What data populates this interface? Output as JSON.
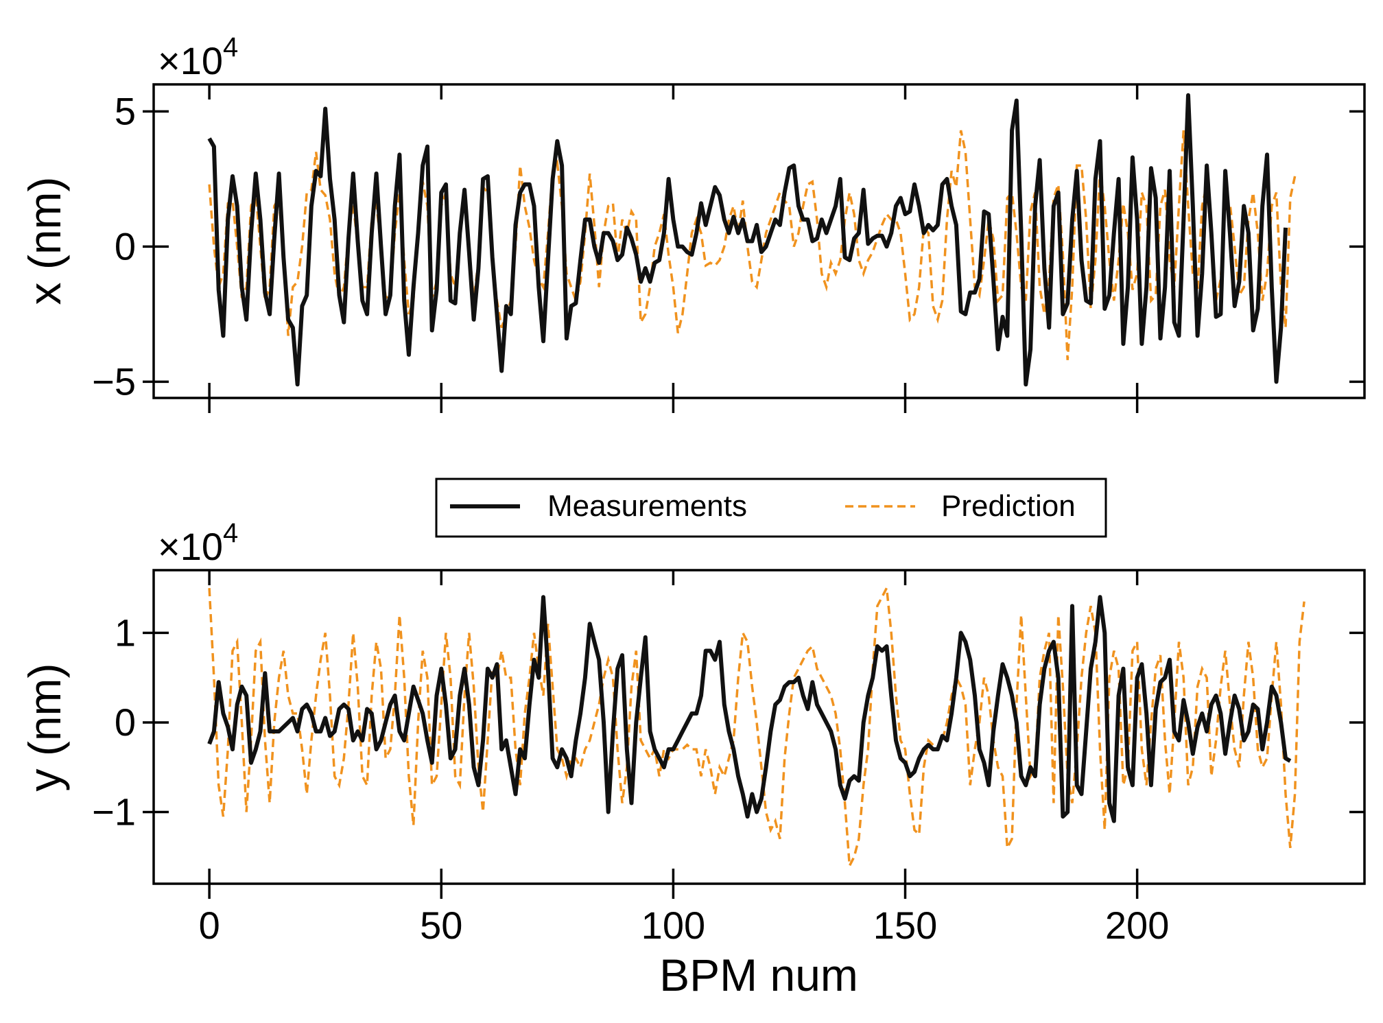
{
  "colors": {
    "measurements": "#111111",
    "prediction": "#F0921E",
    "axes": "#000000",
    "background": "#ffffff"
  },
  "legend": {
    "measurements_label": "Measurements",
    "prediction_label": "Prediction",
    "placement": "upper-center of bottom panel"
  },
  "chart_data": [
    {
      "type": "line",
      "title": "",
      "xlabel": "",
      "ylabel": "x (nm)",
      "multiplier_base": "×10",
      "multiplier_exp": "4",
      "xlim": [
        -12,
        249
      ],
      "ylim": [
        -5.6,
        6.0
      ],
      "yticks": [
        -5,
        0,
        5
      ],
      "ytick_labels": [
        "−5",
        "0",
        "5"
      ],
      "xticks": [
        0,
        50,
        100,
        150,
        200
      ],
      "series": [
        {
          "name": "Measurements",
          "x_start": 0,
          "x_step": 1,
          "values": [
            4.0,
            3.7,
            -1.6,
            -3.3,
            1.0,
            2.6,
            1.5,
            -1.5,
            -2.7,
            0.5,
            2.7,
            1.0,
            -1.7,
            -2.5,
            0.3,
            2.7,
            -0.4,
            -2.7,
            -3.0,
            -5.1,
            -2.2,
            -1.8,
            1.5,
            2.8,
            2.6,
            5.1,
            2.5,
            1.0,
            -1.8,
            -2.8,
            0.3,
            2.7,
            0.2,
            -2.0,
            -2.5,
            0.5,
            2.7,
            0.0,
            -2.5,
            -1.8,
            1.5,
            3.4,
            -2.0,
            -4.0,
            -1.5,
            0.5,
            3.0,
            3.7,
            -3.1,
            -1.6,
            2.0,
            2.3,
            -2.0,
            -2.1,
            0.5,
            2.1,
            -0.2,
            -2.7,
            -0.8,
            2.5,
            2.6,
            -0.4,
            -2.5,
            -4.6,
            -2.2,
            -2.5,
            0.8,
            2.0,
            2.3,
            2.3,
            1.5,
            -1.5,
            -3.5,
            -0.5,
            2.5,
            3.9,
            3.0,
            -3.4,
            -2.2,
            -2.1,
            -0.5,
            1.0,
            1.0,
            0.0,
            -0.6,
            0.5,
            0.5,
            0.2,
            -0.5,
            -0.3,
            0.7,
            0.3,
            -0.3,
            -1.3,
            -0.8,
            -1.3,
            -0.6,
            -0.5,
            0.5,
            2.5,
            1.0,
            0.0,
            0.0,
            -0.2,
            -0.3,
            0.5,
            1.6,
            0.8,
            1.5,
            2.2,
            1.9,
            1.0,
            0.5,
            1.1,
            0.5,
            1.0,
            0.2,
            0.2,
            0.8,
            -0.2,
            0.0,
            0.5,
            1.0,
            0.8,
            2.0,
            2.9,
            3.0,
            1.5,
            1.0,
            1.0,
            0.2,
            0.3,
            1.0,
            0.5,
            1.0,
            1.5,
            2.5,
            -0.4,
            -0.5,
            0.3,
            0.5,
            2.1,
            0.1,
            0.3,
            0.4,
            0.4,
            0.0,
            0.5,
            1.5,
            1.8,
            1.2,
            1.3,
            2.3,
            1.5,
            0.5,
            0.8,
            0.6,
            0.8,
            2.3,
            2.5,
            1.5,
            0.8,
            -2.4,
            -2.5,
            -1.7,
            -1.7,
            -1.2,
            1.3,
            1.2,
            -1.2,
            -3.8,
            -2.6,
            -3.3,
            4.3,
            5.4,
            0.5,
            -5.1,
            -3.8,
            1.5,
            3.2,
            -0.8,
            -3.0,
            1.5,
            2.0,
            -2.5,
            -2.1,
            1.0,
            2.8,
            -0.5,
            -2.0,
            -2.1,
            2.5,
            3.9,
            -2.3,
            -1.8,
            0.5,
            2.5,
            -3.6,
            -1.5,
            3.3,
            1.0,
            -3.6,
            -1.5,
            2.9,
            1.8,
            -3.4,
            -1.5,
            2.8,
            -2.8,
            -3.3,
            1.0,
            5.6,
            1.5,
            -3.3,
            -1.0,
            3.0,
            0.5,
            -2.6,
            -2.5,
            2.8,
            0.5,
            -2.2,
            -1.3,
            1.5,
            0.5,
            -3.1,
            -2.3,
            1.5,
            3.4,
            -1.5,
            -5.0,
            -3.0,
            0.7
          ]
        },
        {
          "name": "Prediction",
          "x_start": 0,
          "x_step": 1,
          "values": [
            2.3,
            0.0,
            -1.5,
            -1.0,
            1.6,
            1.7,
            0.0,
            -1.9,
            -1.5,
            1.5,
            2.0,
            0.0,
            -2.0,
            -1.5,
            1.5,
            1.8,
            -0.5,
            -3.3,
            -1.5,
            -1.3,
            0.0,
            2.0,
            2.1,
            3.5,
            2.1,
            1.9,
            1.0,
            -1.0,
            -1.9,
            -1.5,
            0.5,
            1.6,
            0.0,
            -1.5,
            -1.5,
            1.0,
            1.6,
            0.0,
            -1.9,
            -1.8,
            0.5,
            2.0,
            -0.5,
            -2.5,
            -2.0,
            0.5,
            2.4,
            1.5,
            -1.9,
            -1.3,
            1.5,
            2.0,
            -1.0,
            -1.5,
            0.5,
            2.0,
            0.0,
            -2.0,
            -0.5,
            2.2,
            2.0,
            -0.5,
            -2.0,
            -3.0,
            -2.5,
            -2.0,
            0.0,
            3.0,
            1.5,
            0.7,
            -0.5,
            -1.2,
            -1.5,
            0.5,
            2.8,
            3.1,
            1.5,
            -1.0,
            -1.5,
            -2.0,
            -1.3,
            0.5,
            2.7,
            0.8,
            -1.5,
            0.5,
            1.5,
            1.6,
            -0.5,
            1.0,
            0.5,
            1.3,
            1.0,
            -2.8,
            -2.5,
            -1.5,
            0.0,
            0.5,
            1.2,
            -0.3,
            -1.5,
            -3.2,
            -2.5,
            -1.0,
            0.5,
            1.0,
            0.5,
            -0.7,
            -0.6,
            -0.7,
            -0.5,
            0.0,
            1.0,
            1.5,
            0.5,
            1.7,
            0.0,
            -1.3,
            -1.5,
            -0.5,
            0.5,
            1.0,
            1.5,
            2.0,
            1.7,
            1.5,
            0.0,
            0.5,
            1.5,
            2.3,
            2.4,
            1.0,
            -1.0,
            -1.5,
            -0.6,
            -1.0,
            -0.5,
            1.0,
            2.0,
            1.2,
            -0.5,
            -1.0,
            -0.5,
            -0.2,
            0.3,
            0.8,
            1.2,
            1.0,
            1.0,
            0.5,
            -1.0,
            -2.7,
            -2.5,
            -1.5,
            0.7,
            0.5,
            -2.2,
            -2.7,
            -2.0,
            1.0,
            2.8,
            2.2,
            4.3,
            3.5,
            1.0,
            -1.5,
            -1.8,
            -0.5,
            1.0,
            0.3,
            -2.0,
            -1.8,
            1.8,
            2.0,
            0.5,
            -1.5,
            -2.0,
            1.3,
            2.0,
            -1.5,
            -2.5,
            -1.3,
            1.8,
            2.3,
            -0.3,
            -4.2,
            -1.5,
            3.0,
            3.0,
            1.0,
            -2.3,
            -0.5,
            2.8,
            1.5,
            -0.5,
            -2.0,
            -0.5,
            1.6,
            0.5,
            -1.6,
            -1.0,
            2.0,
            1.5,
            -2.0,
            -1.8,
            1.5,
            2.1,
            -0.5,
            -1.5,
            1.5,
            4.3,
            1.5,
            -1.0,
            -1.6,
            1.5,
            2.3,
            0.3,
            -2.0,
            -1.2,
            1.5,
            1.6,
            0.0,
            -1.8,
            -1.5,
            1.0,
            2.0,
            0.5,
            -2.0,
            -1.0,
            1.5,
            2.0,
            -1.5,
            -3.0,
            1.8,
            2.6
          ]
        }
      ]
    },
    {
      "type": "line",
      "title": "",
      "xlabel": "BPM num",
      "ylabel": "y (nm)",
      "multiplier_base": "×10",
      "multiplier_exp": "4",
      "xlim": [
        -12,
        249
      ],
      "ylim": [
        -1.8,
        1.7
      ],
      "yticks": [
        -1,
        0,
        1
      ],
      "ytick_labels": [
        "−1",
        "0",
        "1"
      ],
      "xticks": [
        0,
        50,
        100,
        150,
        200
      ],
      "xtick_labels": [
        "0",
        "50",
        "100",
        "150",
        "200"
      ],
      "series": [
        {
          "name": "Measurements",
          "x_start": 0,
          "x_step": 1,
          "values": [
            -0.24,
            -0.1,
            0.45,
            0.1,
            -0.05,
            -0.3,
            0.2,
            0.4,
            0.3,
            -0.45,
            -0.3,
            -0.1,
            0.55,
            -0.1,
            -0.1,
            -0.1,
            -0.05,
            0.0,
            0.05,
            -0.1,
            0.15,
            0.2,
            0.1,
            -0.1,
            -0.1,
            0.05,
            -0.15,
            -0.1,
            0.15,
            0.2,
            0.15,
            -0.2,
            -0.1,
            -0.2,
            0.15,
            0.1,
            -0.3,
            -0.2,
            0.0,
            0.2,
            0.3,
            -0.1,
            -0.2,
            0.1,
            0.4,
            0.25,
            0.1,
            -0.2,
            -0.45,
            0.3,
            0.6,
            0.2,
            -0.4,
            -0.3,
            0.3,
            0.6,
            0.2,
            -0.5,
            -0.7,
            -0.2,
            0.6,
            0.5,
            0.65,
            -0.3,
            -0.2,
            -0.5,
            -0.8,
            -0.3,
            -0.4,
            0.2,
            0.7,
            0.5,
            1.4,
            0.6,
            -0.4,
            -0.5,
            -0.3,
            -0.4,
            -0.6,
            -0.2,
            0.1,
            0.5,
            1.1,
            0.9,
            0.7,
            0.0,
            -1.0,
            -0.1,
            0.6,
            0.75,
            -0.3,
            -0.9,
            0.0,
            0.5,
            0.95,
            -0.1,
            -0.3,
            -0.4,
            -0.5,
            -0.3,
            -0.3,
            -0.2,
            -0.1,
            0.0,
            0.1,
            0.1,
            0.3,
            0.8,
            0.8,
            0.7,
            0.9,
            0.2,
            -0.1,
            -0.3,
            -0.6,
            -0.8,
            -1.05,
            -0.8,
            -1.0,
            -0.85,
            -0.5,
            -0.1,
            0.2,
            0.25,
            0.4,
            0.45,
            0.45,
            0.5,
            0.3,
            0.15,
            0.45,
            0.2,
            0.1,
            0.0,
            -0.1,
            -0.3,
            -0.7,
            -0.85,
            -0.65,
            -0.6,
            -0.65,
            0.0,
            0.3,
            0.5,
            0.85,
            0.8,
            0.85,
            0.3,
            -0.2,
            -0.4,
            -0.45,
            -0.6,
            -0.55,
            -0.4,
            -0.3,
            -0.25,
            -0.3,
            -0.3,
            -0.15,
            -0.2,
            0.1,
            0.5,
            1.0,
            0.9,
            0.7,
            0.3,
            -0.3,
            -0.45,
            -0.7,
            -0.1,
            0.3,
            0.65,
            0.5,
            0.3,
            0.0,
            -0.6,
            -0.7,
            -0.5,
            -0.6,
            0.2,
            0.6,
            0.8,
            0.9,
            0.5,
            -1.05,
            -1.0,
            1.3,
            -0.7,
            -0.8,
            -0.1,
            0.6,
            0.9,
            1.4,
            1.0,
            -0.9,
            -1.1,
            0.3,
            0.6,
            -0.5,
            -0.7,
            0.5,
            0.65,
            0.1,
            -0.7,
            0.15,
            0.45,
            0.5,
            0.7,
            -0.1,
            -0.2,
            0.25,
            0.0,
            -0.35,
            -0.05,
            0.1,
            -0.1,
            0.2,
            0.3,
            0.1,
            -0.35,
            0.0,
            0.3,
            0.15,
            -0.2,
            -0.1,
            0.2,
            0.15,
            -0.3,
            0.0,
            0.4,
            0.3,
            0.0,
            -0.4,
            -0.43
          ]
        },
        {
          "name": "Prediction",
          "x_start": 0,
          "x_step": 1,
          "values": [
            1.5,
            0.5,
            -0.7,
            -1.05,
            -0.3,
            0.8,
            0.9,
            0.0,
            -1.0,
            -0.2,
            0.8,
            0.9,
            -0.2,
            -0.9,
            0.0,
            0.5,
            0.8,
            0.3,
            0.1,
            0.1,
            -0.3,
            -0.8,
            -0.2,
            0.3,
            0.7,
            1.0,
            0.3,
            -0.6,
            -0.7,
            -0.4,
            0.2,
            1.0,
            0.4,
            -0.6,
            -0.7,
            0.3,
            0.9,
            0.6,
            -0.4,
            -0.3,
            0.3,
            1.2,
            0.5,
            -0.6,
            -1.15,
            0.0,
            0.8,
            0.5,
            -0.7,
            -0.6,
            0.2,
            1.0,
            0.5,
            -0.6,
            -0.7,
            0.3,
            1.0,
            0.4,
            -0.5,
            -1.0,
            -0.2,
            0.6,
            0.5,
            0.8,
            0.5,
            0.5,
            -0.3,
            -0.7,
            0.1,
            0.5,
            1.0,
            0.6,
            0.3,
            1.1,
            0.4,
            -0.3,
            -0.4,
            -0.6,
            -0.4,
            -0.4,
            -0.5,
            -0.3,
            -0.2,
            0.0,
            0.2,
            0.5,
            0.7,
            0.5,
            -0.3,
            -0.9,
            -0.5,
            0.4,
            0.8,
            -0.2,
            -0.3,
            -0.4,
            -0.3,
            -0.6,
            -0.3,
            -0.4,
            -0.3,
            -0.3,
            -0.3,
            -0.25,
            -0.3,
            -0.3,
            -0.6,
            -0.3,
            -0.5,
            -0.8,
            -0.5,
            -0.6,
            -0.4,
            -0.2,
            0.5,
            1.0,
            0.9,
            0.4,
            0.0,
            -0.5,
            -1.0,
            -1.2,
            -1.1,
            -1.3,
            -0.4,
            0.1,
            0.5,
            0.6,
            0.7,
            0.8,
            0.85,
            0.6,
            0.5,
            0.4,
            0.3,
            0.1,
            -0.3,
            -0.9,
            -1.6,
            -1.5,
            -1.3,
            -0.7,
            -0.3,
            0.6,
            1.3,
            1.4,
            1.5,
            1.0,
            0.3,
            -0.2,
            -0.3,
            -0.8,
            -1.2,
            -1.25,
            -0.5,
            -0.2,
            -0.25,
            -0.3,
            -0.2,
            0.0,
            0.3,
            0.5,
            0.4,
            0.2,
            -0.7,
            -0.3,
            0.0,
            0.5,
            0.3,
            -0.2,
            -0.5,
            -0.6,
            -1.4,
            -1.3,
            0.2,
            1.2,
            0.3,
            -0.6,
            -0.5,
            0.5,
            0.8,
            1.0,
            -0.9,
            1.2,
            0.4,
            -0.6,
            -0.9,
            -0.3,
            0.5,
            1.0,
            1.3,
            1.0,
            -0.3,
            -1.2,
            0.5,
            0.8,
            0.6,
            -0.7,
            -0.5,
            0.8,
            0.9,
            -0.3,
            -0.7,
            0.0,
            0.6,
            0.75,
            -0.2,
            -0.8,
            0.0,
            0.9,
            0.5,
            -0.7,
            -0.5,
            0.4,
            0.6,
            0.5,
            -0.6,
            -0.2,
            0.4,
            0.8,
            0.2,
            -0.3,
            -0.5,
            0.3,
            0.9,
            0.5,
            -0.3,
            -0.5,
            -0.4,
            0.3,
            0.9,
            0.2,
            -0.8,
            -1.4,
            -0.8,
            0.9,
            1.35
          ]
        }
      ]
    }
  ]
}
